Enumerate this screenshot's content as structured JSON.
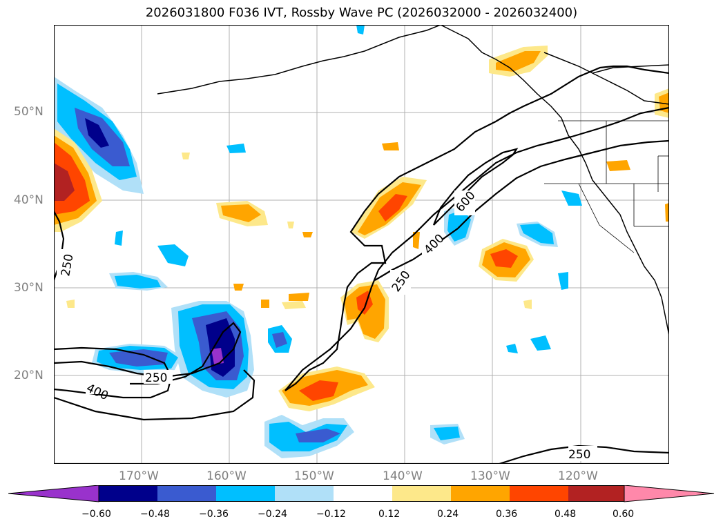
{
  "title": "2026031800 F036 IVT, Rossby Wave PC (2026032000 - 2026032400)",
  "lat_labels": [
    "50°N",
    "40°N",
    "30°N",
    "20°N"
  ],
  "lon_labels": [
    "170°W",
    "160°W",
    "150°W",
    "140°W",
    "130°W",
    "120°W"
  ],
  "contour_labels": [
    "250",
    "400",
    "250",
    "250",
    "400",
    "600",
    "250"
  ],
  "colorbar": {
    "ticks": [
      "−0.60",
      "−0.48",
      "−0.36",
      "−0.24",
      "−0.12",
      "0.12",
      "0.24",
      "0.36",
      "0.48",
      "0.60"
    ],
    "colors": [
      "#9932cc",
      "#00008b",
      "#3a5bd0",
      "#00bfff",
      "#b0e0f8",
      "#ffffff",
      "#fde88a",
      "#ffa500",
      "#ff4500",
      "#b22222",
      "#ff88aa"
    ]
  }
}
